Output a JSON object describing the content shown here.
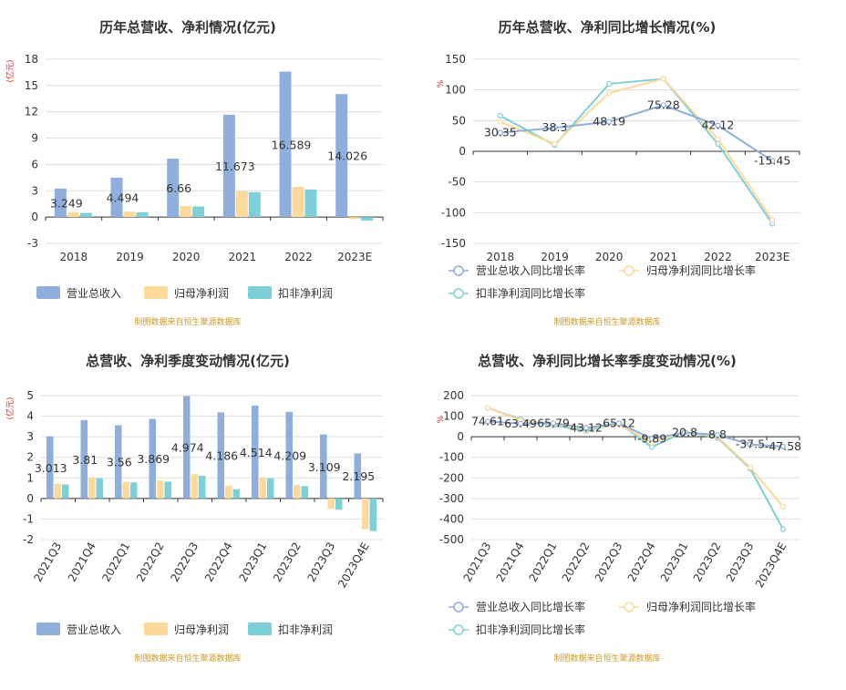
{
  "colors": {
    "revenue": "#8eaedc",
    "net_profit": "#fdd99b",
    "deducted_profit": "#7ed0d8",
    "grid": "#dddddd",
    "source": "#c89a2a",
    "unit": "#e02020"
  },
  "legend": {
    "revenue": "营业总收入",
    "net_profit": "归母净利润",
    "deducted_profit": "扣非净利润",
    "revenue_growth": "营业总收入同比增长率",
    "net_profit_growth": "归母净利润同比增长率",
    "deducted_growth": "扣非净利润同比增长率"
  },
  "source_note": "制图数据来自恒生聚源数据库",
  "chart_data": [
    {
      "type": "bar",
      "title": "历年总营收、净利情况(亿元)",
      "ylabel": "(亿元)",
      "ylim": [
        -3,
        18
      ],
      "yticks": [
        -3,
        0,
        3,
        6,
        9,
        12,
        15,
        18
      ],
      "categories": [
        "2018",
        "2019",
        "2020",
        "2021",
        "2022",
        "2023E"
      ],
      "grid": true,
      "legend_position": "bottom",
      "series": [
        {
          "name": "营业总收入",
          "values": [
            3.249,
            4.494,
            6.66,
            11.673,
            16.589,
            14.026
          ],
          "labels": [
            "3.249",
            "4.494",
            "6.66",
            "11.673",
            "16.589",
            "14.026"
          ]
        },
        {
          "name": "归母净利润",
          "values": [
            0.55,
            0.62,
            1.25,
            2.95,
            3.45,
            -0.22
          ]
        },
        {
          "name": "扣非净利润",
          "values": [
            0.48,
            0.55,
            1.2,
            2.85,
            3.15,
            -0.4
          ]
        }
      ]
    },
    {
      "type": "line",
      "title": "历年总营收、净利同比增长情况(%)",
      "ylabel": "%",
      "ylim": [
        -150,
        150
      ],
      "yticks": [
        -150,
        -100,
        -50,
        0,
        50,
        100,
        150
      ],
      "categories": [
        "2018",
        "2019",
        "2020",
        "2021",
        "2022",
        "2023E"
      ],
      "grid": true,
      "legend_position": "bottom",
      "series": [
        {
          "name": "营业总收入同比增长率",
          "values": [
            30.35,
            38.3,
            48.19,
            75.28,
            42.12,
            -15.45
          ],
          "labels": [
            "30.35",
            "38.3",
            "48.19",
            "75.28",
            "42.12",
            "-15.45"
          ]
        },
        {
          "name": "归母净利润同比增长率",
          "values": [
            48,
            12,
            95,
            118,
            20,
            -112
          ]
        },
        {
          "name": "扣非净利润同比增长率",
          "values": [
            58,
            10,
            110,
            118,
            12,
            -118
          ]
        }
      ]
    },
    {
      "type": "bar",
      "title": "总营收、净利季度变动情况(亿元)",
      "ylabel": "(亿元)",
      "ylim": [
        -2,
        5
      ],
      "yticks": [
        -2,
        -1,
        0,
        1,
        2,
        3,
        4,
        5
      ],
      "categories": [
        "2021Q3",
        "2021Q4",
        "2022Q1",
        "2022Q2",
        "2022Q3",
        "2022Q4",
        "2023Q1",
        "2023Q2",
        "2023Q3",
        "2023Q4E"
      ],
      "grid": true,
      "legend_position": "bottom",
      "series": [
        {
          "name": "营业总收入",
          "values": [
            3.013,
            3.81,
            3.56,
            3.869,
            4.974,
            4.186,
            4.514,
            4.209,
            3.109,
            2.195
          ],
          "labels": [
            "3.013",
            "3.81",
            "3.56",
            "3.869",
            "4.974",
            "4.186",
            "4.514",
            "4.209",
            "3.109",
            "2.195"
          ]
        },
        {
          "name": "归母净利润",
          "values": [
            0.72,
            1.02,
            0.8,
            0.88,
            1.18,
            0.62,
            1.02,
            0.65,
            -0.5,
            -1.5
          ]
        },
        {
          "name": "扣非净利润",
          "values": [
            0.68,
            0.98,
            0.78,
            0.82,
            1.1,
            0.45,
            0.98,
            0.6,
            -0.55,
            -1.58
          ]
        }
      ]
    },
    {
      "type": "line",
      "title": "总营收、净利同比增长率季度变动情况(%)",
      "ylabel": "%",
      "ylim": [
        -500,
        200
      ],
      "yticks": [
        -500,
        -400,
        -300,
        -200,
        -100,
        0,
        100,
        200
      ],
      "categories": [
        "2021Q3",
        "2021Q4",
        "2022Q1",
        "2022Q2",
        "2022Q3",
        "2022Q4",
        "2023Q1",
        "2023Q2",
        "2023Q3",
        "2023Q4E"
      ],
      "grid": true,
      "legend_position": "bottom",
      "series": [
        {
          "name": "营业总收入同比增长率",
          "values": [
            74.61,
            63.49,
            65.79,
            43.12,
            65.12,
            -9.89,
            20.8,
            8.8,
            -37.5,
            -47.58
          ],
          "labels": [
            "74.61",
            "63.49",
            "65.79",
            "43.12",
            "65.12",
            "-9.89",
            "20.8",
            "8.8",
            "-37.5",
            "-47.58"
          ]
        },
        {
          "name": "归母净利润同比增长率",
          "values": [
            140,
            80,
            60,
            40,
            60,
            -30,
            25,
            0,
            -150,
            -340
          ]
        },
        {
          "name": "扣非净利润同比增长率",
          "values": [
            140,
            85,
            55,
            30,
            65,
            -50,
            25,
            -5,
            -155,
            -450
          ]
        }
      ]
    }
  ]
}
